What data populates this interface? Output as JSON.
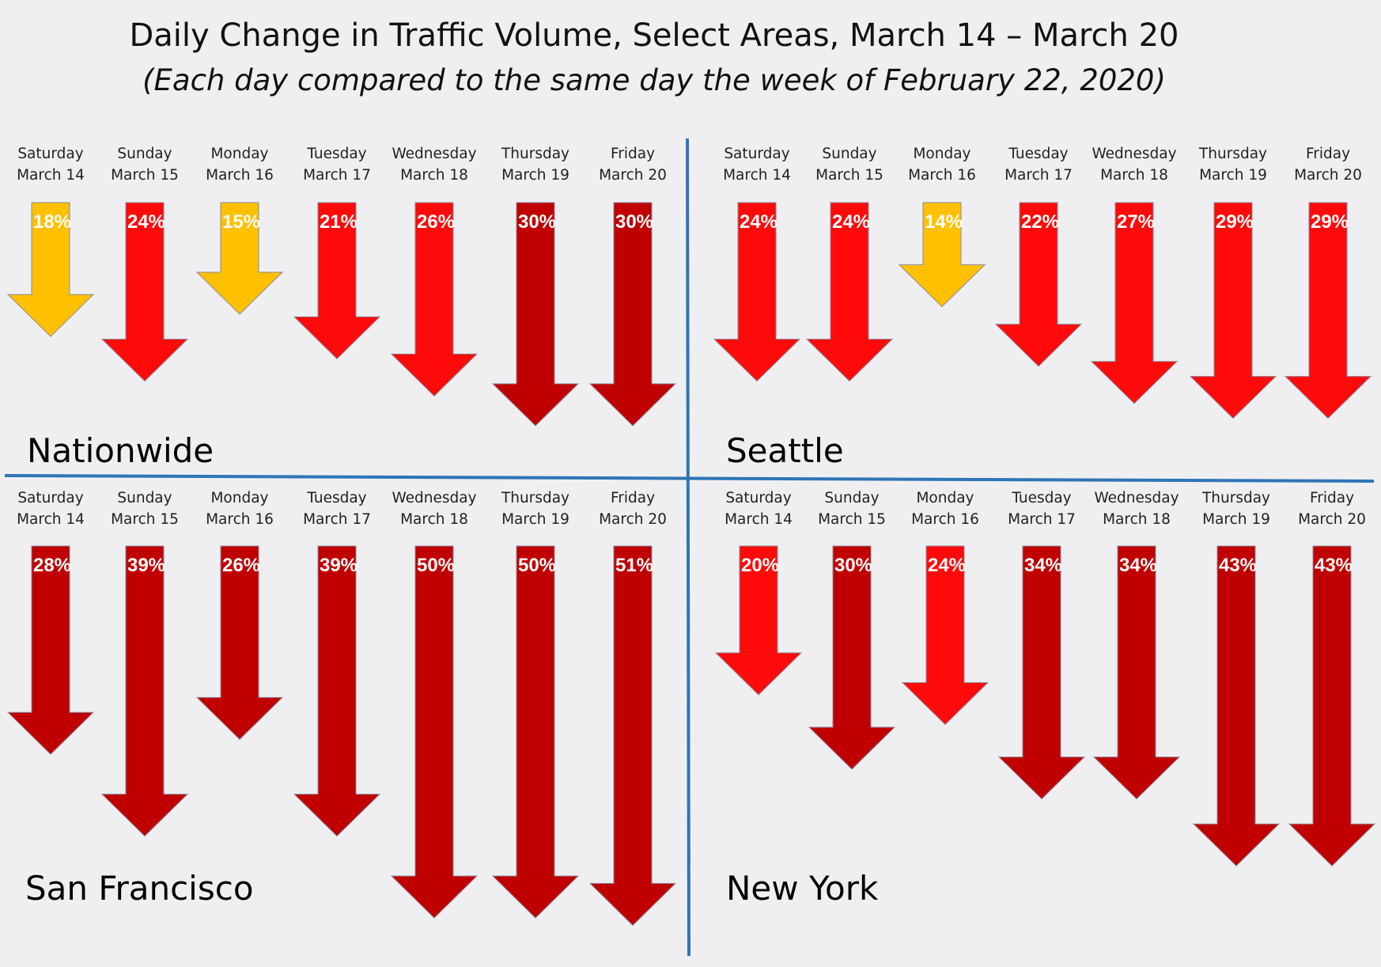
{
  "title": "Daily Change in Traffic Volume, Select Areas, March 14 – March 20",
  "subtitle": "(Each day compared to the same day the week of February 22, 2020)",
  "colors": {
    "background": "#efeff1",
    "divider": "#2e75b6",
    "low": "#ffc000",
    "mid": "#ff0a0a",
    "high": "#c00000"
  },
  "chart_data": [
    {
      "type": "bar",
      "area": "Nationwide",
      "categories": [
        [
          "Saturday",
          "March 14"
        ],
        [
          "Sunday",
          "March 15"
        ],
        [
          "Monday",
          "March 16"
        ],
        [
          "Tuesday",
          "March 17"
        ],
        [
          "Wednesday",
          "March 18"
        ],
        [
          "Thursday",
          "March 19"
        ],
        [
          "Friday",
          "March 20"
        ]
      ],
      "values": [
        18,
        24,
        15,
        21,
        26,
        30,
        30
      ],
      "labels": [
        "18%",
        "24%",
        "15%",
        "21%",
        "26%",
        "30%",
        "30%"
      ],
      "value_meaning": "percent decrease",
      "colors": [
        "low",
        "mid",
        "low",
        "mid",
        "mid",
        "high",
        "high"
      ]
    },
    {
      "type": "bar",
      "area": "Seattle",
      "categories": [
        [
          "Saturday",
          "March 14"
        ],
        [
          "Sunday",
          "March 15"
        ],
        [
          "Monday",
          "March 16"
        ],
        [
          "Tuesday",
          "March 17"
        ],
        [
          "Wednesday",
          "March 18"
        ],
        [
          "Thursday",
          "March 19"
        ],
        [
          "Friday",
          "March 20"
        ]
      ],
      "values": [
        24,
        24,
        14,
        22,
        27,
        29,
        29
      ],
      "labels": [
        "24%",
        "24%",
        "14%",
        "22%",
        "27%",
        "29%",
        "29%"
      ],
      "value_meaning": "percent decrease",
      "colors": [
        "mid",
        "mid",
        "low",
        "mid",
        "mid",
        "mid",
        "mid"
      ]
    },
    {
      "type": "bar",
      "area": "San Francisco",
      "categories": [
        [
          "Saturday",
          "March 14"
        ],
        [
          "Sunday",
          "March 15"
        ],
        [
          "Monday",
          "March 16"
        ],
        [
          "Tuesday",
          "March 17"
        ],
        [
          "Wednesday",
          "March 18"
        ],
        [
          "Thursday",
          "March 19"
        ],
        [
          "Friday",
          "March 20"
        ]
      ],
      "values": [
        28,
        39,
        26,
        39,
        50,
        50,
        51
      ],
      "labels": [
        "28%",
        "39%",
        "26%",
        "39%",
        "50%",
        "50%",
        "51%"
      ],
      "value_meaning": "percent decrease",
      "colors": [
        "high",
        "high",
        "high",
        "high",
        "high",
        "high",
        "high"
      ]
    },
    {
      "type": "bar",
      "area": "New York",
      "categories": [
        [
          "Saturday",
          "March 14"
        ],
        [
          "Sunday",
          "March 15"
        ],
        [
          "Monday",
          "March 16"
        ],
        [
          "Tuesday",
          "March 17"
        ],
        [
          "Wednesday",
          "March 18"
        ],
        [
          "Thursday",
          "March 19"
        ],
        [
          "Friday",
          "March 20"
        ]
      ],
      "values": [
        20,
        30,
        24,
        34,
        34,
        43,
        43
      ],
      "labels": [
        "20%",
        "30%",
        "24%",
        "34%",
        "34%",
        "43%",
        "43%"
      ],
      "value_meaning": "percent decrease",
      "colors": [
        "mid",
        "high",
        "mid",
        "high",
        "high",
        "high",
        "high"
      ]
    }
  ]
}
